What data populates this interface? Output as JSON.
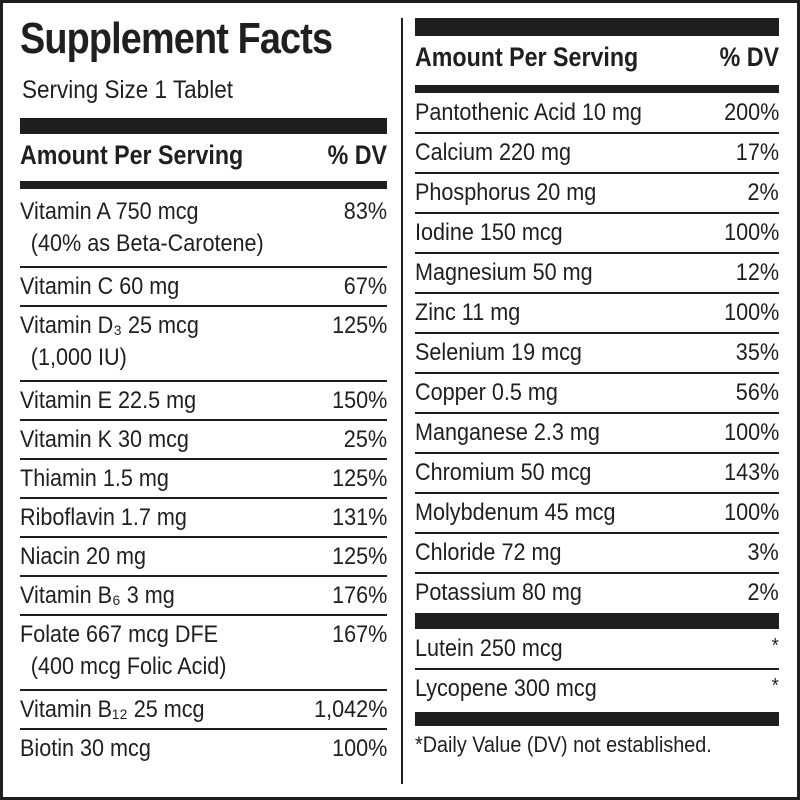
{
  "title": "Supplement Facts",
  "serving_size": "Serving Size 1 Tablet",
  "header": {
    "amount_label": "Amount Per Serving",
    "dv_label": "% DV"
  },
  "left_rows": [
    {
      "name": "Vitamin A 750 mcg",
      "sub": "(40% as Beta-Carotene)",
      "dv": "83%"
    },
    {
      "name": "Vitamin C 60 mg",
      "sub": "",
      "dv": "67%"
    },
    {
      "name": "Vitamin D₃ 25 mcg",
      "sub": "(1,000 IU)",
      "dv": "125%"
    },
    {
      "name": "Vitamin E  22.5 mg",
      "sub": "",
      "dv": "150%"
    },
    {
      "name": "Vitamin K 30 mcg",
      "sub": "",
      "dv": "25%"
    },
    {
      "name": "Thiamin 1.5 mg",
      "sub": "",
      "dv": "125%"
    },
    {
      "name": "Riboflavin 1.7 mg",
      "sub": "",
      "dv": "131%"
    },
    {
      "name": "Niacin 20 mg",
      "sub": "",
      "dv": "125%"
    },
    {
      "name": "Vitamin B₆ 3 mg",
      "sub": "",
      "dv": "176%"
    },
    {
      "name": "Folate 667 mcg DFE",
      "sub": "(400 mcg Folic Acid)",
      "dv": "167%"
    },
    {
      "name": "Vitamin B₁₂ 25 mcg",
      "sub": "",
      "dv": "1,042%"
    },
    {
      "name": "Biotin 30 mcg",
      "sub": "",
      "dv": "100%"
    }
  ],
  "right_rows": [
    {
      "name": "Pantothenic Acid 10 mg",
      "dv": "200%"
    },
    {
      "name": "Calcium 220 mg",
      "dv": "17%"
    },
    {
      "name": "Phosphorus 20 mg",
      "dv": "2%"
    },
    {
      "name": "Iodine 150 mcg",
      "dv": "100%"
    },
    {
      "name": "Magnesium 50 mg",
      "dv": "12%"
    },
    {
      "name": "Zinc 11 mg",
      "dv": "100%"
    },
    {
      "name": "Selenium 19 mcg",
      "dv": "35%"
    },
    {
      "name": "Copper 0.5 mg",
      "dv": "56%"
    },
    {
      "name": "Manganese 2.3 mg",
      "dv": "100%"
    },
    {
      "name": "Chromium 50 mcg",
      "dv": "143%"
    },
    {
      "name": "Molybdenum 45 mcg",
      "dv": "100%"
    },
    {
      "name": "Chloride 72 mg",
      "dv": "3%"
    },
    {
      "name": "Potassium 80 mg",
      "dv": "2%"
    }
  ],
  "extra_rows": [
    {
      "name": "Lutein 250 mcg",
      "dv": "*"
    },
    {
      "name": "Lycopene 300 mcg",
      "dv": "*"
    }
  ],
  "footnote": "*Daily Value (DV) not established."
}
